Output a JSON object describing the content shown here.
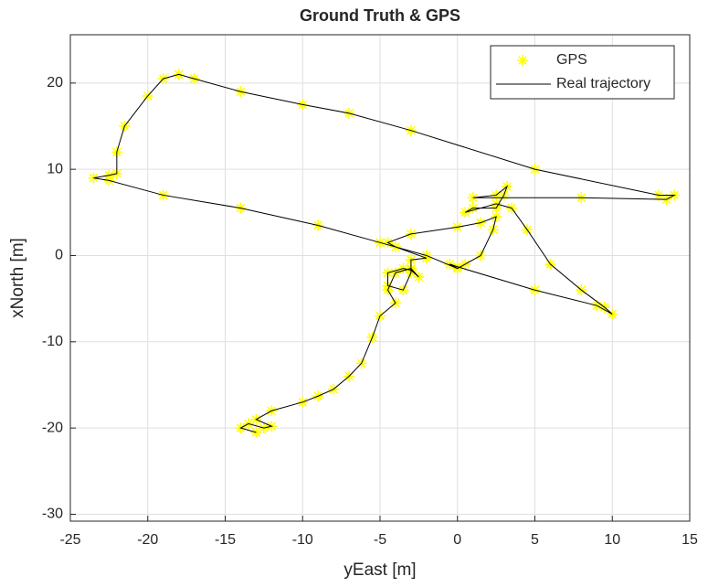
{
  "chart_data": {
    "type": "scatter",
    "title": "Ground Truth & GPS",
    "xlabel": "yEast [m]",
    "ylabel": "xNorth [m]",
    "xlim": [
      -25,
      15
    ],
    "ylim": [
      -30.8,
      25.6
    ],
    "xticks": [
      -25,
      -20,
      -15,
      -10,
      -5,
      0,
      5,
      10,
      15
    ],
    "yticks": [
      -30,
      -20,
      -10,
      0,
      10,
      20
    ],
    "grid": true,
    "legend": "upper right",
    "series": [
      {
        "name": "GPS",
        "type": "scatter",
        "marker": "*",
        "color": "#ffff00",
        "x": [
          -13,
          -14,
          -13.5,
          -12.5,
          -12,
          -13,
          -12,
          -10,
          -9,
          -8,
          -7,
          -6.2,
          -5.5,
          -5,
          -4,
          -4.5,
          -4,
          -3,
          -2.5,
          -3,
          -3.5,
          -4.5,
          -4.5,
          -3.5,
          -3,
          -3,
          -2,
          -4,
          -4.5,
          -3,
          0,
          1.5,
          2.5,
          2.3,
          1.5,
          0.5,
          0,
          -0.5,
          0,
          5,
          9,
          10,
          9.5,
          8,
          6,
          4.5,
          3.5,
          2.5,
          0.5,
          1,
          2.5,
          3,
          3.2,
          2.5,
          1,
          8,
          13.5,
          14,
          13,
          5,
          -3,
          -7,
          -10,
          -14,
          -17,
          -18,
          -19,
          -20,
          -21.5,
          -22,
          -22,
          -22.5,
          -23.5,
          -22.5,
          -19,
          -14,
          -9,
          -5,
          -2,
          0
        ],
        "y": [
          -20.5,
          -20,
          -19.5,
          -20,
          -19.8,
          -19,
          -18,
          -17,
          -16.3,
          -15.5,
          -14,
          -12.5,
          -9.5,
          -7,
          -5.5,
          -4,
          -2,
          -1.5,
          -2.5,
          -1.7,
          -1.5,
          -2,
          -3.5,
          -4,
          -2,
          -0.5,
          -0.3,
          1,
          1.5,
          2.5,
          3.3,
          3.8,
          4.5,
          3,
          0,
          -1,
          -1.5,
          -1,
          -1.3,
          -4,
          -5.8,
          -6.8,
          -6,
          -4,
          -1,
          3,
          5.5,
          6,
          5,
          5.5,
          5.5,
          7,
          8,
          7,
          6.7,
          6.7,
          6.5,
          7,
          7,
          10,
          14.5,
          16.5,
          17.5,
          19,
          20.5,
          21,
          20.5,
          18.5,
          15,
          12,
          9.5,
          9.3,
          9,
          8.7,
          7,
          5.5,
          3.5,
          1.5,
          0,
          -1.5
        ]
      },
      {
        "name": "Real trajectory",
        "type": "line",
        "color": "#000000",
        "x": [
          -13,
          -14,
          -13.5,
          -12.5,
          -12,
          -13,
          -12,
          -10,
          -9,
          -8,
          -7,
          -6.2,
          -5.5,
          -5,
          -4,
          -4.5,
          -4,
          -3,
          -2.5,
          -3,
          -3.5,
          -4.5,
          -4.5,
          -3.5,
          -3,
          -3,
          -2,
          -4,
          -4.5,
          -3,
          0,
          1.5,
          2.5,
          2.3,
          1.5,
          0.5,
          0,
          -0.5,
          0,
          5,
          9,
          10,
          9.5,
          8,
          6,
          4.5,
          3.5,
          2.5,
          0.5,
          1,
          2.5,
          3,
          3.2,
          2.5,
          1,
          8,
          13.5,
          14,
          13,
          5,
          -3,
          -7,
          -10,
          -14,
          -17,
          -18,
          -19,
          -20,
          -21.5,
          -22,
          -22,
          -22.5,
          -23.5,
          -22.5,
          -19,
          -14,
          -9,
          -5,
          -2,
          0
        ],
        "y": [
          -20.5,
          -20,
          -19.5,
          -20,
          -19.8,
          -19,
          -18,
          -17,
          -16.3,
          -15.5,
          -14,
          -12.5,
          -9.5,
          -7,
          -5.5,
          -4,
          -2,
          -1.5,
          -2.5,
          -1.7,
          -1.5,
          -2,
          -3.5,
          -4,
          -2,
          -0.5,
          -0.3,
          1,
          1.5,
          2.5,
          3.3,
          3.8,
          4.5,
          3,
          0,
          -1,
          -1.5,
          -1,
          -1.3,
          -4,
          -5.8,
          -6.8,
          -6,
          -4,
          -1,
          3,
          5.5,
          6,
          5,
          5.5,
          5.5,
          7,
          8,
          7,
          6.7,
          6.7,
          6.5,
          7,
          7,
          10,
          14.5,
          16.5,
          17.5,
          19,
          20.5,
          21,
          20.5,
          18.5,
          15,
          12,
          9.5,
          9.3,
          9,
          8.7,
          7,
          5.5,
          3.5,
          1.5,
          0,
          -1.5
        ]
      }
    ]
  }
}
